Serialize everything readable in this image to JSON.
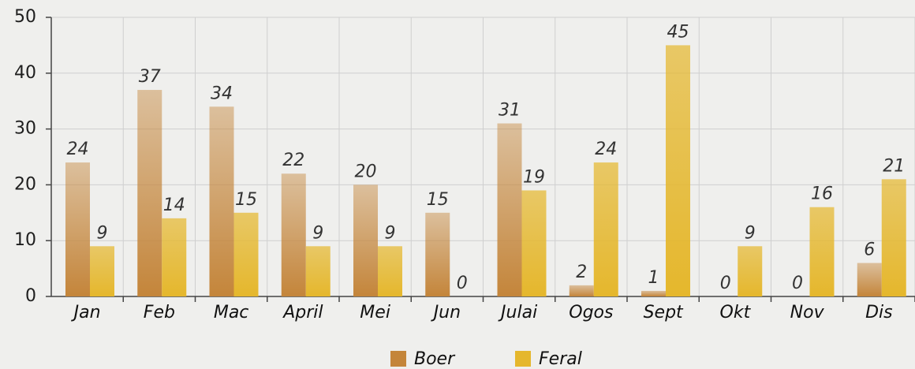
{
  "chart_data": {
    "type": "bar",
    "categories": [
      "Jan",
      "Feb",
      "Mac",
      "April",
      "Mei",
      "Jun",
      "Julai",
      "Ogos",
      "Sept",
      "Okt",
      "Nov",
      "Dis"
    ],
    "series": [
      {
        "name": "Boer",
        "color": "#c4853a",
        "values": [
          24,
          37,
          34,
          22,
          20,
          15,
          31,
          2,
          1,
          0,
          0,
          6
        ]
      },
      {
        "name": "Feral",
        "color": "#e5b72c",
        "values": [
          9,
          14,
          15,
          9,
          9,
          0,
          19,
          24,
          45,
          9,
          16,
          21
        ]
      }
    ],
    "ylim": [
      0,
      50
    ],
    "yticks": [
      0,
      10,
      20,
      30,
      40,
      50
    ],
    "grid": true,
    "legend": "bottom"
  }
}
